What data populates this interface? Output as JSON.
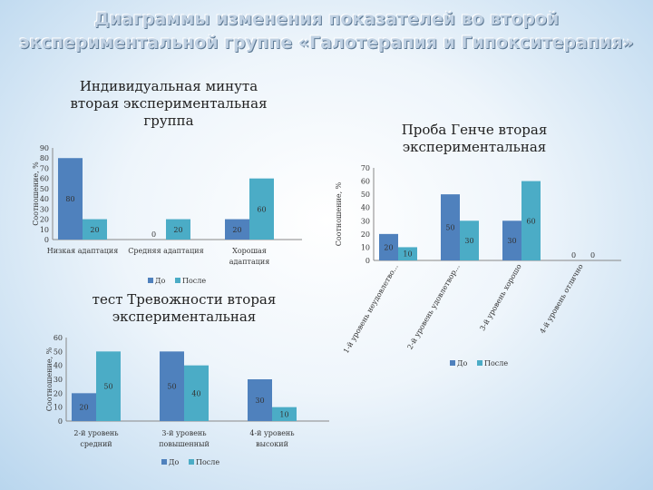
{
  "slide": {
    "title_line1": "Диаграммы изменения показателей во второй",
    "title_line2": "экспериментальной группе «Галотерапия и Гипокситерапия»"
  },
  "colors": {
    "before": "#4f81bd",
    "after": "#4bacc6"
  },
  "chart_data": [
    {
      "type": "bar",
      "title": "Индивидуальная минута вторая экспериментальная группа",
      "title_lines": [
        "Индивидуальная минута",
        "вторая экспериментальная",
        "группа"
      ],
      "ylabel": "Соотношение, %",
      "ylim": [
        0,
        90
      ],
      "yticks": [
        0,
        10,
        20,
        30,
        40,
        50,
        60,
        70,
        80,
        90
      ],
      "categories": [
        "Низкая адаптация",
        "Средняя адаптация",
        "Хорошая адаптация"
      ],
      "category_lines": [
        [
          "Низкая адаптация"
        ],
        [
          "Средняя адаптация"
        ],
        [
          "Хорошая",
          "адаптация"
        ]
      ],
      "series": [
        {
          "name": "До",
          "values": [
            80,
            0,
            20
          ],
          "labels": [
            "80",
            "0",
            "20"
          ]
        },
        {
          "name": "После",
          "values": [
            20,
            20,
            60
          ],
          "labels": [
            "20",
            "20",
            "60"
          ]
        }
      ],
      "legend": "bottom"
    },
    {
      "type": "bar",
      "title": "Проба Генче вторая экспериментальная",
      "title_lines": [
        "Проба Генче вторая",
        "экспериментальная"
      ],
      "ylabel": "Соотношение, %",
      "ylim": [
        0,
        70
      ],
      "yticks": [
        0,
        10,
        20,
        30,
        40,
        50,
        60,
        70
      ],
      "categories": [
        "1-й уровень неудовлетво...",
        "2-й уровень удовлетвор...",
        "3-й уровень хорошо",
        "4-й уровень отлично"
      ],
      "series": [
        {
          "name": "До",
          "values": [
            20,
            50,
            30,
            0
          ],
          "labels": [
            "20",
            "50",
            "30",
            "0"
          ]
        },
        {
          "name": "После",
          "values": [
            10,
            30,
            60,
            0
          ],
          "labels": [
            "10",
            "30",
            "60",
            "0"
          ]
        }
      ],
      "legend": "bottom"
    },
    {
      "type": "bar",
      "title": "тест Тревожности вторая экспериментальная",
      "title_lines": [
        "тест Тревожности вторая",
        "экспериментальная"
      ],
      "ylabel": "Соотношение, %",
      "ylim": [
        0,
        60
      ],
      "yticks": [
        0,
        10,
        20,
        30,
        40,
        50,
        60
      ],
      "categories": [
        "2-й уровень средний",
        "3-й уровень повышенный",
        "4-й уровень высокий"
      ],
      "category_lines": [
        [
          "2-й уровень",
          "средний"
        ],
        [
          "3-й уровень",
          "повышенный"
        ],
        [
          "4-й уровень",
          "высокий"
        ]
      ],
      "series": [
        {
          "name": "До",
          "values": [
            20,
            50,
            30
          ],
          "labels": [
            "20",
            "50",
            "30"
          ]
        },
        {
          "name": "После",
          "values": [
            50,
            40,
            10
          ],
          "labels": [
            "50",
            "40",
            "10"
          ]
        }
      ],
      "legend": "bottom"
    }
  ]
}
